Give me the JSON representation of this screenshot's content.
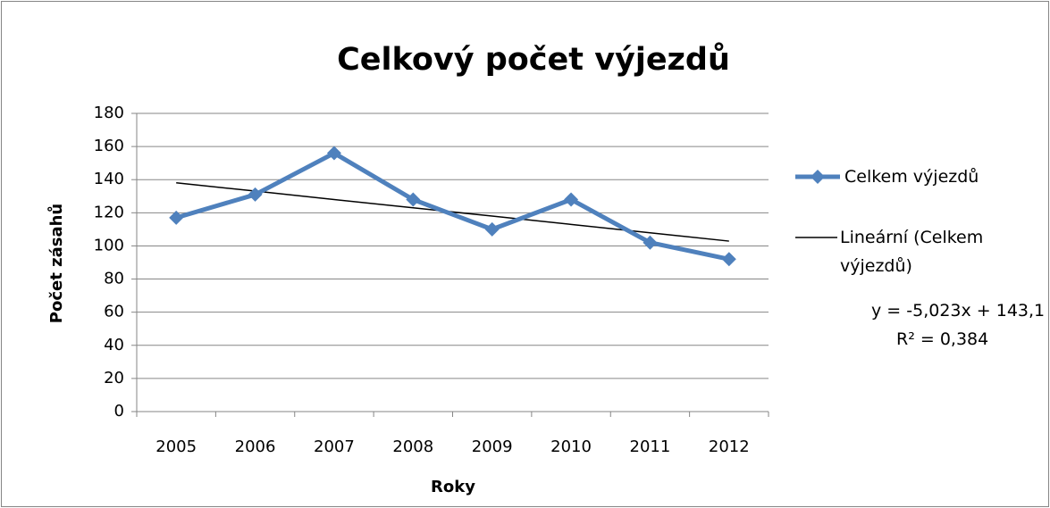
{
  "chart_data": {
    "type": "line",
    "title": "Celkový počet výjezdů",
    "x_label": "Roky",
    "y_label": "Počet zásahů",
    "categories": [
      "2005",
      "2006",
      "2007",
      "2008",
      "2009",
      "2010",
      "2011",
      "2012"
    ],
    "series": [
      {
        "name": "Celkem výjezdů",
        "color": "#4f81bd",
        "marker": "diamond",
        "values": [
          117,
          131,
          156,
          128,
          110,
          128,
          102,
          92
        ]
      },
      {
        "name": "Lineární (Celkem výjezdů)",
        "color": "#000000",
        "marker": "none",
        "values": [
          138.1,
          133.1,
          128.0,
          123.0,
          118.0,
          113.0,
          107.9,
          102.9
        ]
      }
    ],
    "annotations": [
      "y = -5,023x + 143,1",
      "R² = 0,384"
    ],
    "ylim": [
      0,
      180
    ],
    "yticks": [
      0,
      20,
      40,
      60,
      80,
      100,
      120,
      140,
      160,
      180
    ],
    "grid": true,
    "legend": "right"
  }
}
